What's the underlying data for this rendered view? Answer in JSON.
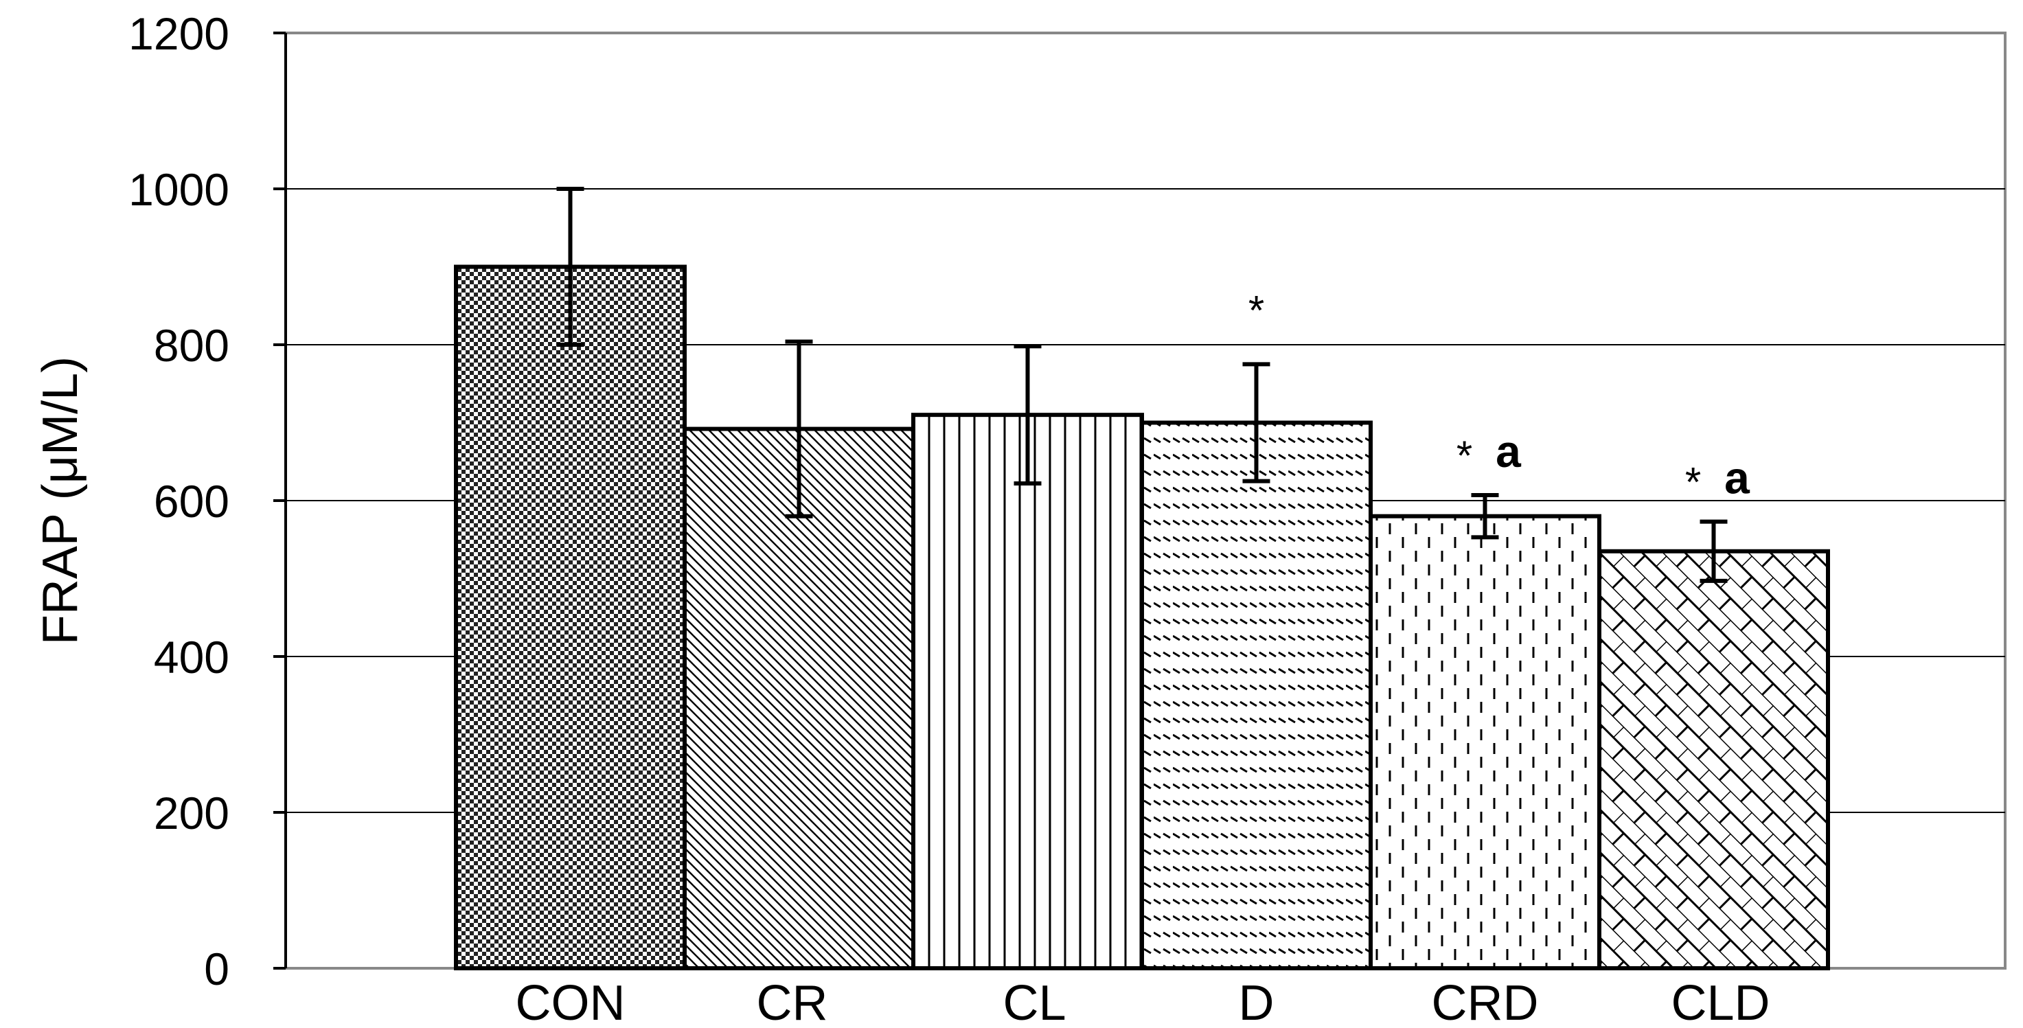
{
  "chart_data": {
    "type": "bar",
    "title": "",
    "xlabel": "",
    "ylabel": "FRAP (μM/L)",
    "ylim": [
      0,
      1200
    ],
    "yticks": [
      "0",
      "200",
      "400",
      "600",
      "800",
      "1000",
      "1200"
    ],
    "grid": true,
    "categories": [
      "CON",
      "CR",
      "CL",
      "D",
      "CRD",
      "CLD"
    ],
    "values": [
      900,
      692,
      710,
      700,
      580,
      535
    ],
    "errors": [
      100,
      112,
      88,
      75,
      27,
      38
    ],
    "patterns": [
      "checker",
      "diagonal-down",
      "vertical",
      "dashed-horizontal",
      "dashed-vertical",
      "brick-diagonal"
    ],
    "annotations": [
      {
        "category": "D",
        "star": "*",
        "letter": ""
      },
      {
        "category": "CRD",
        "star": "*",
        "letter": "a"
      },
      {
        "category": "CLD",
        "star": "*",
        "letter": "a"
      }
    ]
  }
}
